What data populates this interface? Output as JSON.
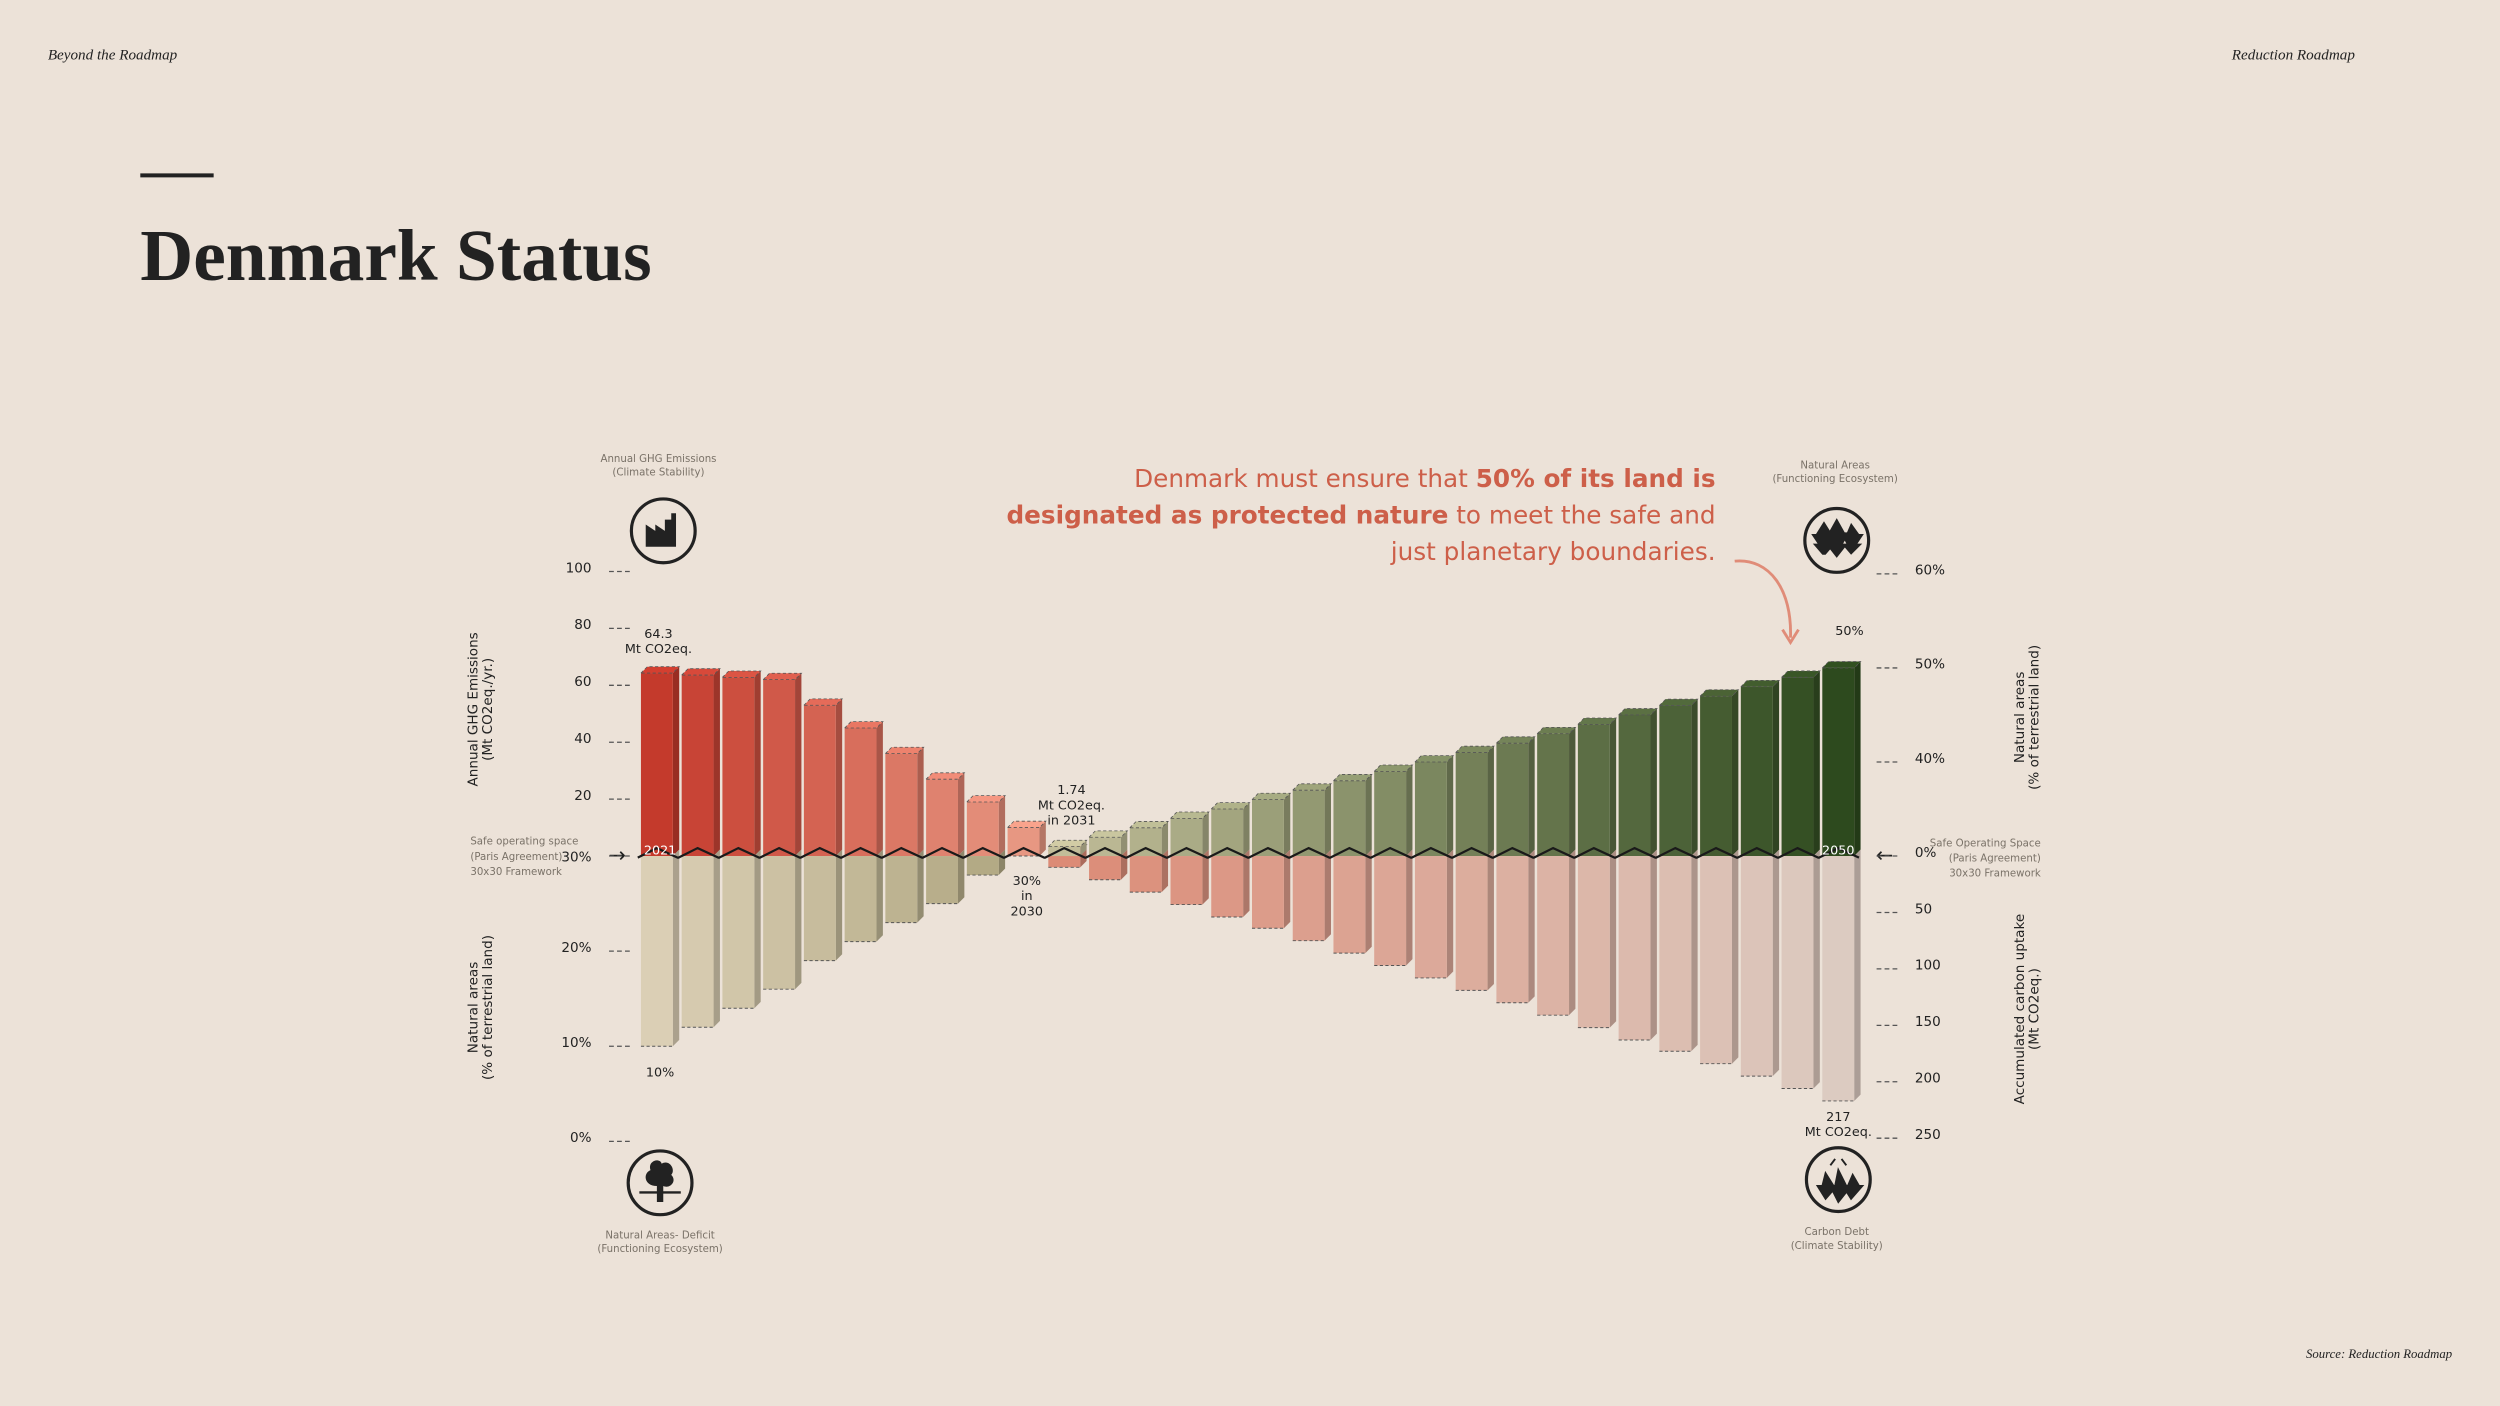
{
  "header": {
    "left": "Beyond the Roadmap",
    "right": "Reduction Roadmap"
  },
  "source": "Source: Reduction Roadmap",
  "chart_data": {
    "type": "bar",
    "title": "Denmark Status",
    "callout": [
      [
        {
          "text": "Denmark must ensure that ",
          "bold": false
        },
        {
          "text": "50% of its land is",
          "bold": true
        }
      ],
      [
        {
          "text": "designated as protected nature",
          "bold": true
        },
        {
          "text": " to meet the safe and",
          "bold": false
        }
      ],
      [
        {
          "text": "just planetary boundaries.",
          "bold": false
        }
      ]
    ],
    "categories": [
      "2021",
      null,
      null,
      null,
      null,
      null,
      null,
      null,
      null,
      null,
      null,
      null,
      null,
      null,
      null,
      null,
      null,
      null,
      null,
      null,
      null,
      null,
      null,
      null,
      null,
      null,
      null,
      null,
      null,
      "2050"
    ],
    "axes": [
      {
        "title": [
          "Annual GHG Emissions",
          "(Mt CO2eq./yr.)"
        ],
        "lim": [
          0,
          100
        ],
        "ticks": [
          20,
          40,
          60,
          80,
          100
        ],
        "icon_caption": [
          "Annual GHG Emissions",
          "(Climate Stability)"
        ]
      },
      {
        "title": [
          "Natural areas",
          "(% of terrestrial land)"
        ],
        "lim": [
          30,
          0
        ],
        "ticks": [
          {
            "value": 30,
            "label": "30%"
          },
          {
            "value": 20,
            "label": "20%"
          },
          {
            "value": 10,
            "label": "10%"
          },
          {
            "value": 0,
            "label": "0%"
          }
        ],
        "icon_caption": [
          "Natural Areas- Deficit",
          "(Functioning Ecosystem)"
        ]
      },
      {
        "title": [
          "Natural areas",
          "(% of terrestrial land)"
        ],
        "lim": [
          30,
          60
        ],
        "ticks": [
          {
            "value": 40,
            "label": "40%"
          },
          {
            "value": 50,
            "label": "50%"
          },
          {
            "value": 60,
            "label": "60%"
          }
        ],
        "icon_caption": [
          "Natural Areas",
          "(Functioning Ecosystem)"
        ]
      },
      {
        "title": [
          "Accumulated carbon uptake",
          "(Mt CO2eq.)"
        ],
        "lim": [
          0,
          250
        ],
        "ticks": [
          {
            "value": 0,
            "label": "0%"
          },
          50,
          100,
          150,
          200,
          250
        ],
        "icon_caption": [
          "Carbon Debt",
          "(Climate Stability)"
        ]
      }
    ],
    "series": [
      {
        "axis": 0,
        "colors": [
          "#c43a2c",
          "#eba18b"
        ],
        "values": [
          64.3,
          63.6,
          62.8,
          62,
          53,
          45,
          36,
          27,
          19,
          10,
          1.74,
          null,
          null,
          null,
          null,
          null,
          null,
          null,
          null,
          null,
          null,
          null,
          null,
          null,
          null,
          null,
          null,
          null,
          null,
          null
        ]
      },
      {
        "axis": 1,
        "colors": [
          "#dbcfb5",
          "#aea57f"
        ],
        "values": [
          10,
          12,
          14,
          16,
          19,
          21,
          23,
          25,
          28,
          30,
          null,
          null,
          null,
          null,
          null,
          null,
          null,
          null,
          null,
          null,
          null,
          null,
          null,
          null,
          null,
          null,
          null,
          null,
          null,
          null
        ]
      },
      {
        "axis": 2,
        "colors": [
          "#c2bd99",
          "#2d4a1e"
        ],
        "values": [
          null,
          null,
          null,
          null,
          null,
          null,
          null,
          null,
          null,
          null,
          31,
          32,
          33,
          34,
          35,
          36,
          37,
          38,
          39,
          40,
          41,
          42,
          43,
          44,
          45,
          46,
          47,
          48,
          49,
          50
        ]
      },
      {
        "axis": 3,
        "colors": [
          "#dc8b76",
          "#dccbc1"
        ],
        "values": [
          null,
          null,
          null,
          null,
          null,
          null,
          null,
          null,
          null,
          null,
          10,
          21,
          32,
          43,
          54,
          64,
          75,
          86,
          97,
          108,
          119,
          130,
          141,
          152,
          163,
          173,
          184,
          195,
          206,
          217
        ]
      }
    ],
    "safe_space": [
      [
        "Safe operating space",
        "(Paris Agreement)",
        "30x30 Framework"
      ],
      [
        "Safe Operating Space",
        "(Paris Agreement)",
        "30x30 Framework"
      ]
    ],
    "annotations": [
      [
        "64.3",
        "Mt CO2eq."
      ],
      [
        "1.74",
        "Mt CO2eq.",
        "in 2031"
      ],
      [
        "30%",
        "in",
        "2030"
      ],
      [
        "10%"
      ],
      [
        "50%"
      ],
      [
        "217",
        "Mt CO2eq."
      ]
    ]
  }
}
